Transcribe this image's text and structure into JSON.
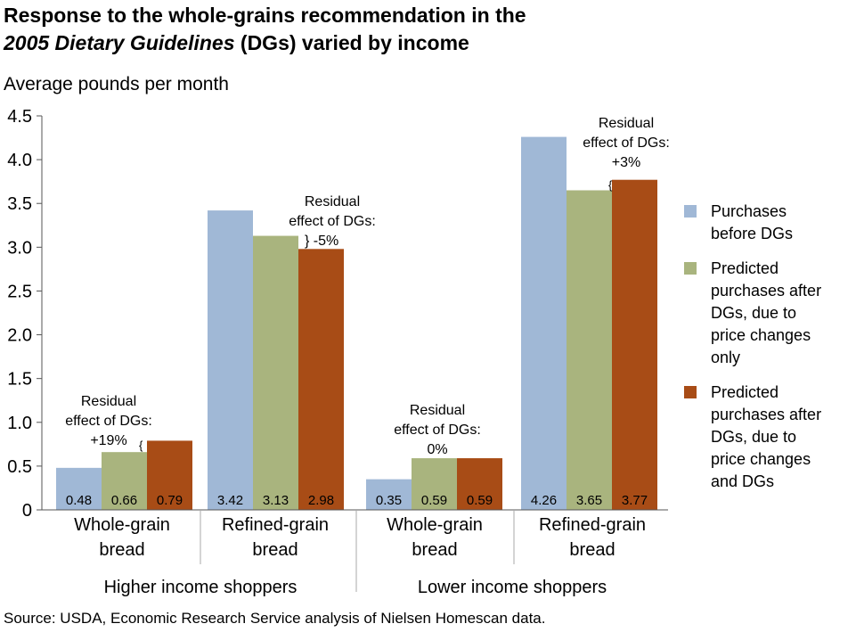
{
  "title": {
    "line1": "Response to the whole-grains recommendation in the",
    "line2_italic": "2005 Dietary Guidelines",
    "line2_rest": " (DGs) varied by income"
  },
  "source": "Source: USDA, Economic Research Service analysis of Nielsen Homescan data.",
  "colors": {
    "before": "#a0b8d6",
    "price": "#a9b47e",
    "dgs": "#a84c16"
  },
  "chart_data": {
    "type": "bar",
    "ylabel": "Average pounds per month",
    "ylim": [
      0,
      4.5
    ],
    "yticks": [
      "0",
      "0.5",
      "1.0",
      "1.5",
      "2.0",
      "2.5",
      "3.0",
      "3.5",
      "4.0",
      "4.5"
    ],
    "categories": [
      "Whole-grain bread",
      "Refined-grain bread",
      "Whole-grain bread",
      "Refined-grain bread"
    ],
    "category_lines": [
      [
        "Whole-grain",
        "bread"
      ],
      [
        "Refined-grain",
        "bread"
      ],
      [
        "Whole-grain",
        "bread"
      ],
      [
        "Refined-grain",
        "bread"
      ]
    ],
    "groups": [
      "Higher income shoppers",
      "Lower income shoppers"
    ],
    "series": [
      {
        "name": "Purchases before DGs",
        "values": [
          0.48,
          3.42,
          0.35,
          4.26
        ],
        "labels": [
          "0.48",
          "3.42",
          "0.35",
          "4.26"
        ]
      },
      {
        "name": "Predicted purchases after DGs, due to price changes only",
        "values": [
          0.66,
          3.13,
          0.59,
          3.65
        ],
        "labels": [
          "0.66",
          "3.13",
          "0.59",
          "3.65"
        ]
      },
      {
        "name": "Predicted purchases after DGs, due to price changes and DGs",
        "values": [
          0.79,
          2.98,
          0.59,
          3.77
        ],
        "labels": [
          "0.79",
          "2.98",
          "0.59",
          "3.77"
        ]
      }
    ],
    "legend": [
      [
        "Purchases",
        "before DGs"
      ],
      [
        "Predicted",
        "purchases after",
        "DGs, due to",
        "price changes",
        "only"
      ],
      [
        "Predicted",
        "purchases after",
        "DGs, due to",
        "price changes",
        "and DGs"
      ]
    ],
    "legend_position": "right",
    "annotations": [
      {
        "lines": [
          "Residual",
          "effect of DGs:",
          "+19%"
        ]
      },
      {
        "lines": [
          "Residual",
          "effect of DGs:",
          "} -5%"
        ]
      },
      {
        "lines": [
          "Residual",
          "effect of DGs:",
          "0%"
        ]
      },
      {
        "lines": [
          "Residual",
          "effect of DGs:",
          "+3%"
        ]
      }
    ]
  }
}
